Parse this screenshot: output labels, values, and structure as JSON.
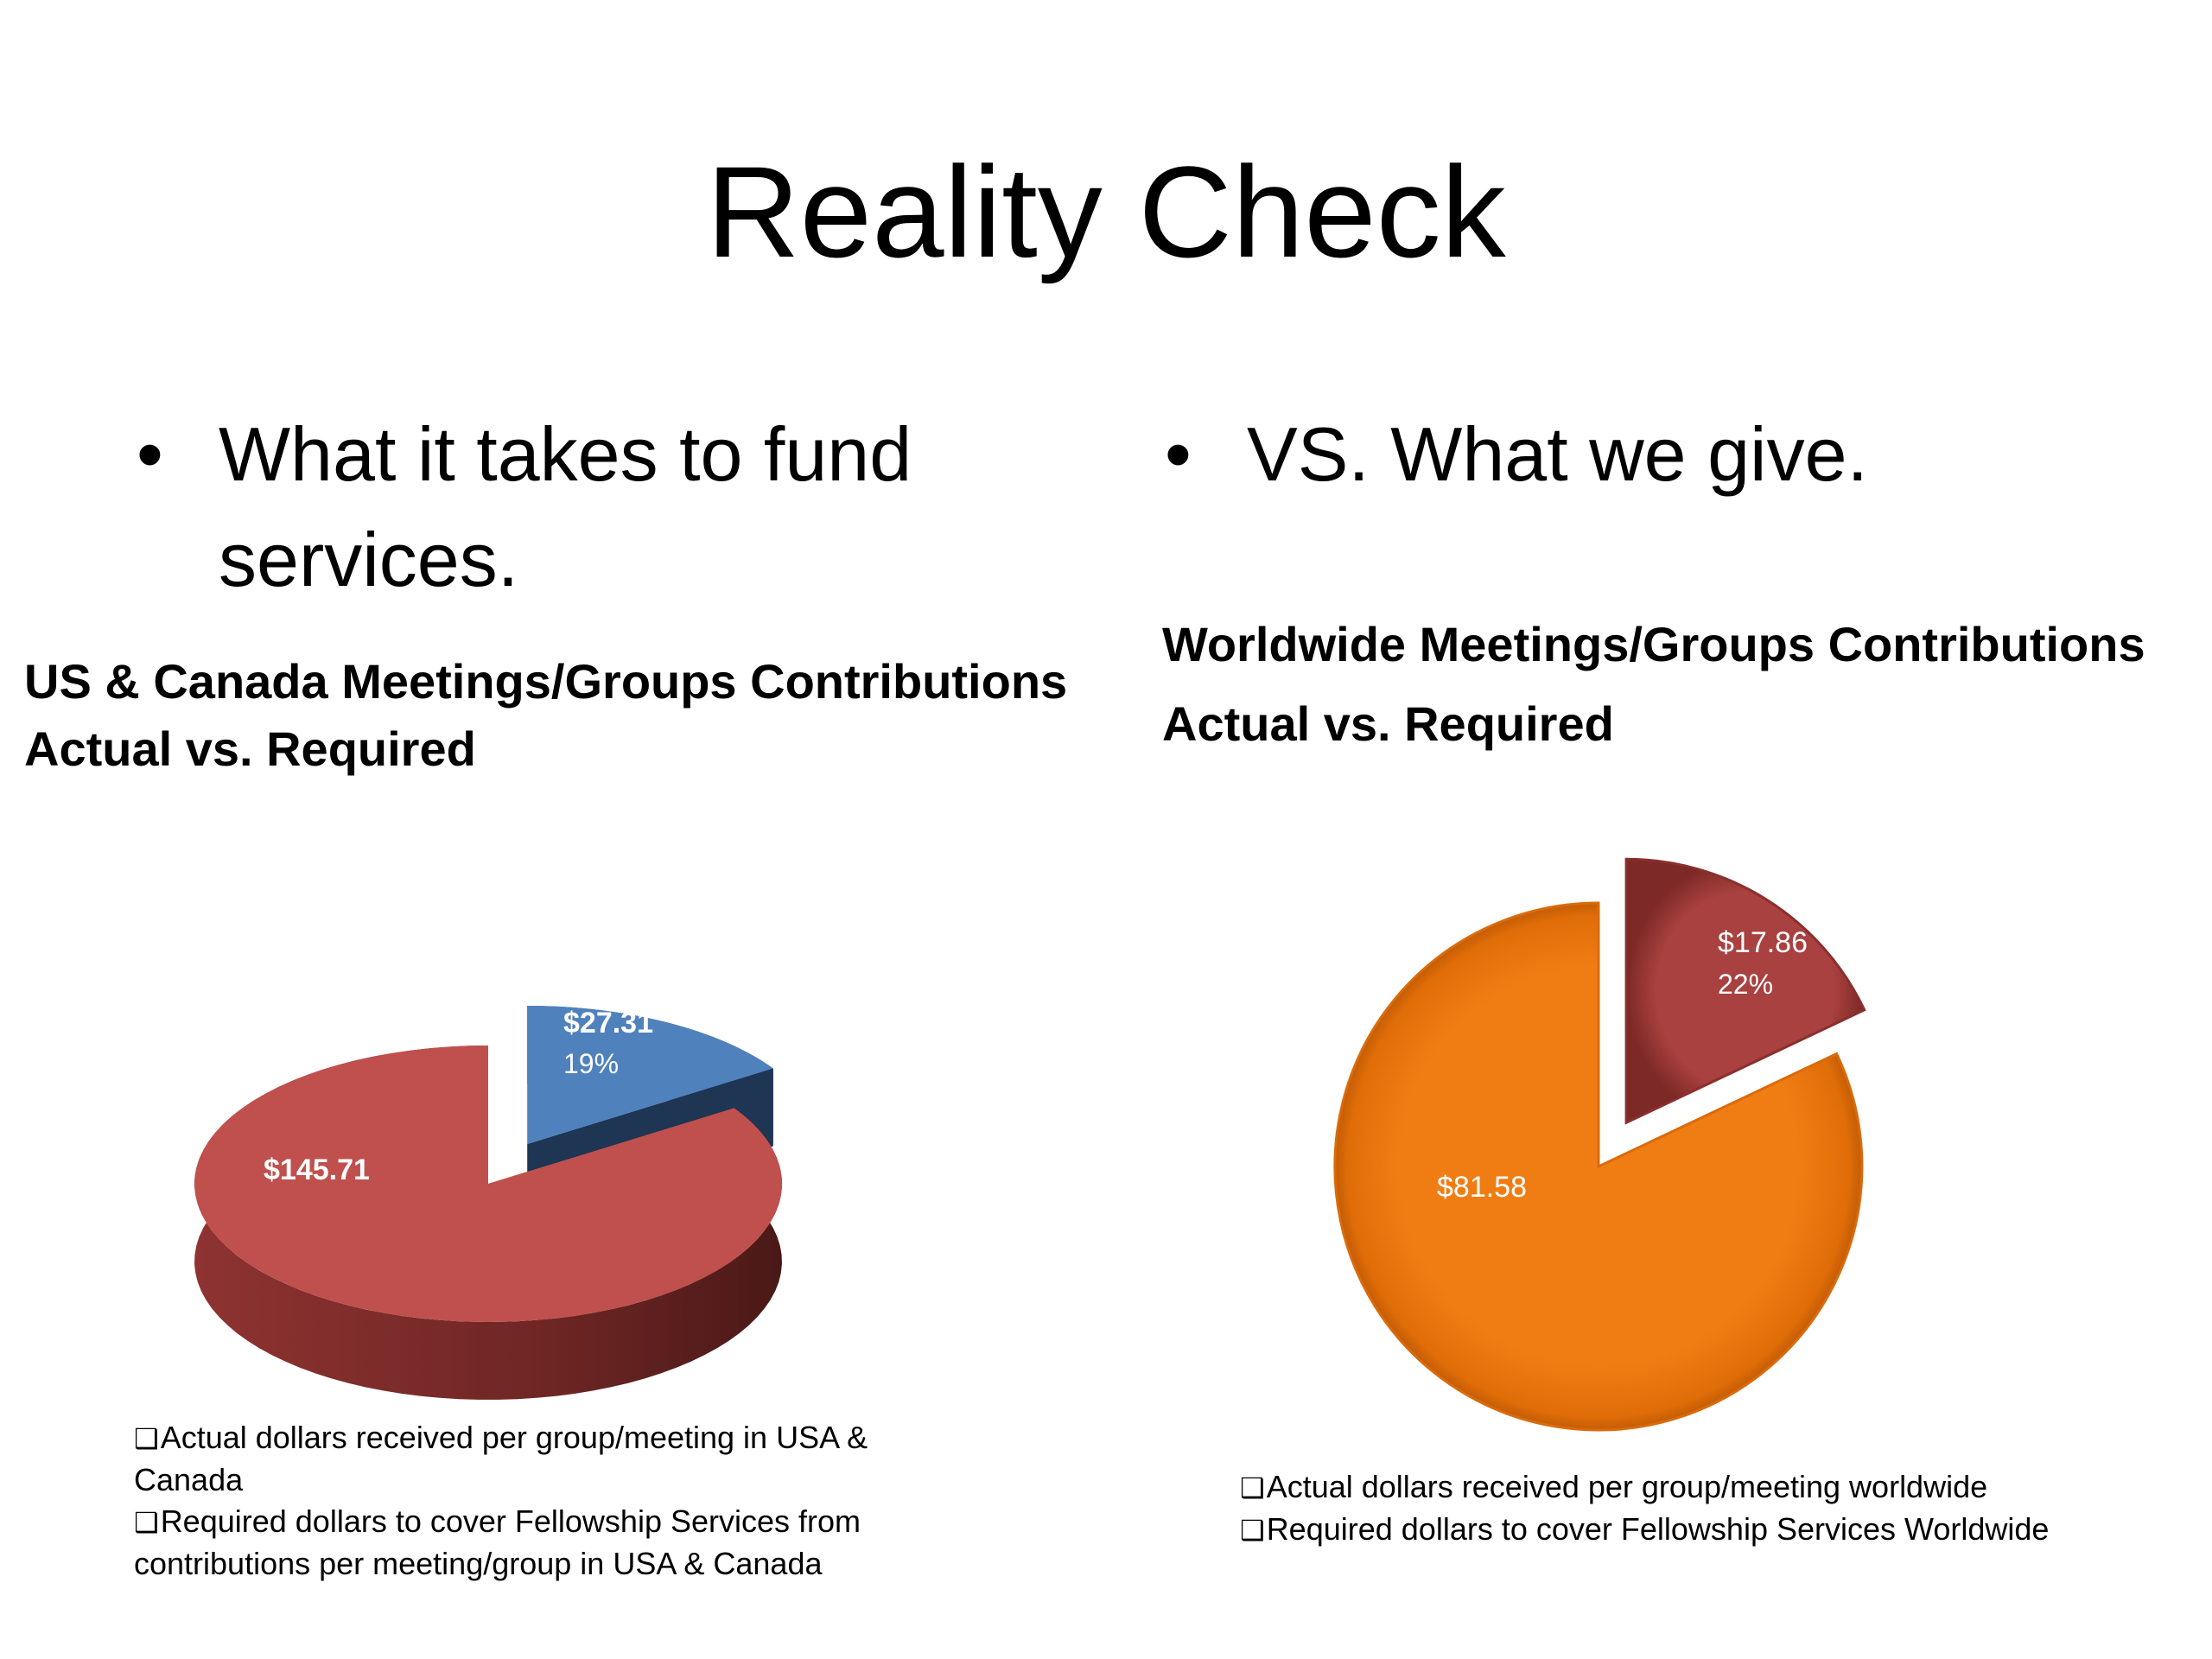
{
  "slide": {
    "title": "Reality Check",
    "bullet_left": "What it takes to fund services.",
    "bullet_right": "VS. What we give."
  },
  "chart_data": [
    {
      "type": "pie",
      "title": "US & Canada Meetings/Groups Contributions Actual vs. Required",
      "title_line1": "US & Canada Meetings/Groups Contributions",
      "title_line2": "Actual vs. Required",
      "style": "3d-exploded",
      "slices": [
        {
          "value": 27.31,
          "label": "$27.31",
          "percent_label": "19%",
          "color": "#4f81bd",
          "exploded": true,
          "legend": "Actual dollars received per group/meeting in USA & Canada"
        },
        {
          "value": 145.71,
          "label": "$145.71",
          "percent_label": "",
          "color": "#c0504d",
          "exploded": false,
          "legend": "Required dollars to cover Fellowship Services from contributions per meeting/group in USA & Canada"
        }
      ],
      "legend_lines": [
        "Actual dollars received per group/meeting in USA &",
        "Canada",
        "Required dollars to cover Fellowship Services from",
        "contributions per meeting/group in USA & Canada"
      ]
    },
    {
      "type": "pie",
      "title": "Worldwide Meetings/Groups Contributions Actual vs. Required",
      "title_line1": "Worldwide Meetings/Groups Contributions",
      "title_line2": "Actual vs. Required",
      "style": "exploded",
      "slices": [
        {
          "value": 17.86,
          "label": "$17.86",
          "percent_label": "22%",
          "color": "#a33a3a",
          "exploded": true,
          "legend": "Actual dollars received per group/meeting worldwide"
        },
        {
          "value": 81.58,
          "label": "$81.58",
          "percent_label": "",
          "color": "#f07d14",
          "exploded": false,
          "legend": "Required dollars to cover Fellowship Services Worldwide"
        }
      ],
      "legend_lines": [
        "Actual dollars received per group/meeting worldwide",
        "Required dollars to cover Fellowship Services Worldwide"
      ]
    }
  ]
}
